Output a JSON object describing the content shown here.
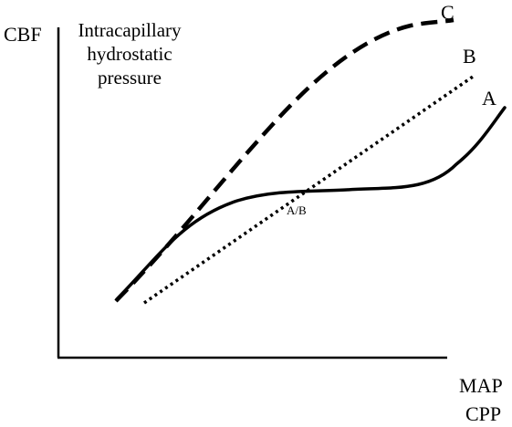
{
  "diagram": {
    "y_axis_label": "CBF",
    "annotation_lines": [
      "Intracapillary",
      "hydrostatic",
      "pressure"
    ],
    "x_axis_labels": [
      "MAP",
      "CPP"
    ],
    "curves": [
      {
        "label": "A",
        "style": "solid",
        "color": "#000000"
      },
      {
        "label": "B",
        "style": "dotted",
        "color": "#000000"
      },
      {
        "label": "C",
        "style": "dashed",
        "color": "#000000"
      }
    ],
    "intersection_label": "A/B"
  }
}
